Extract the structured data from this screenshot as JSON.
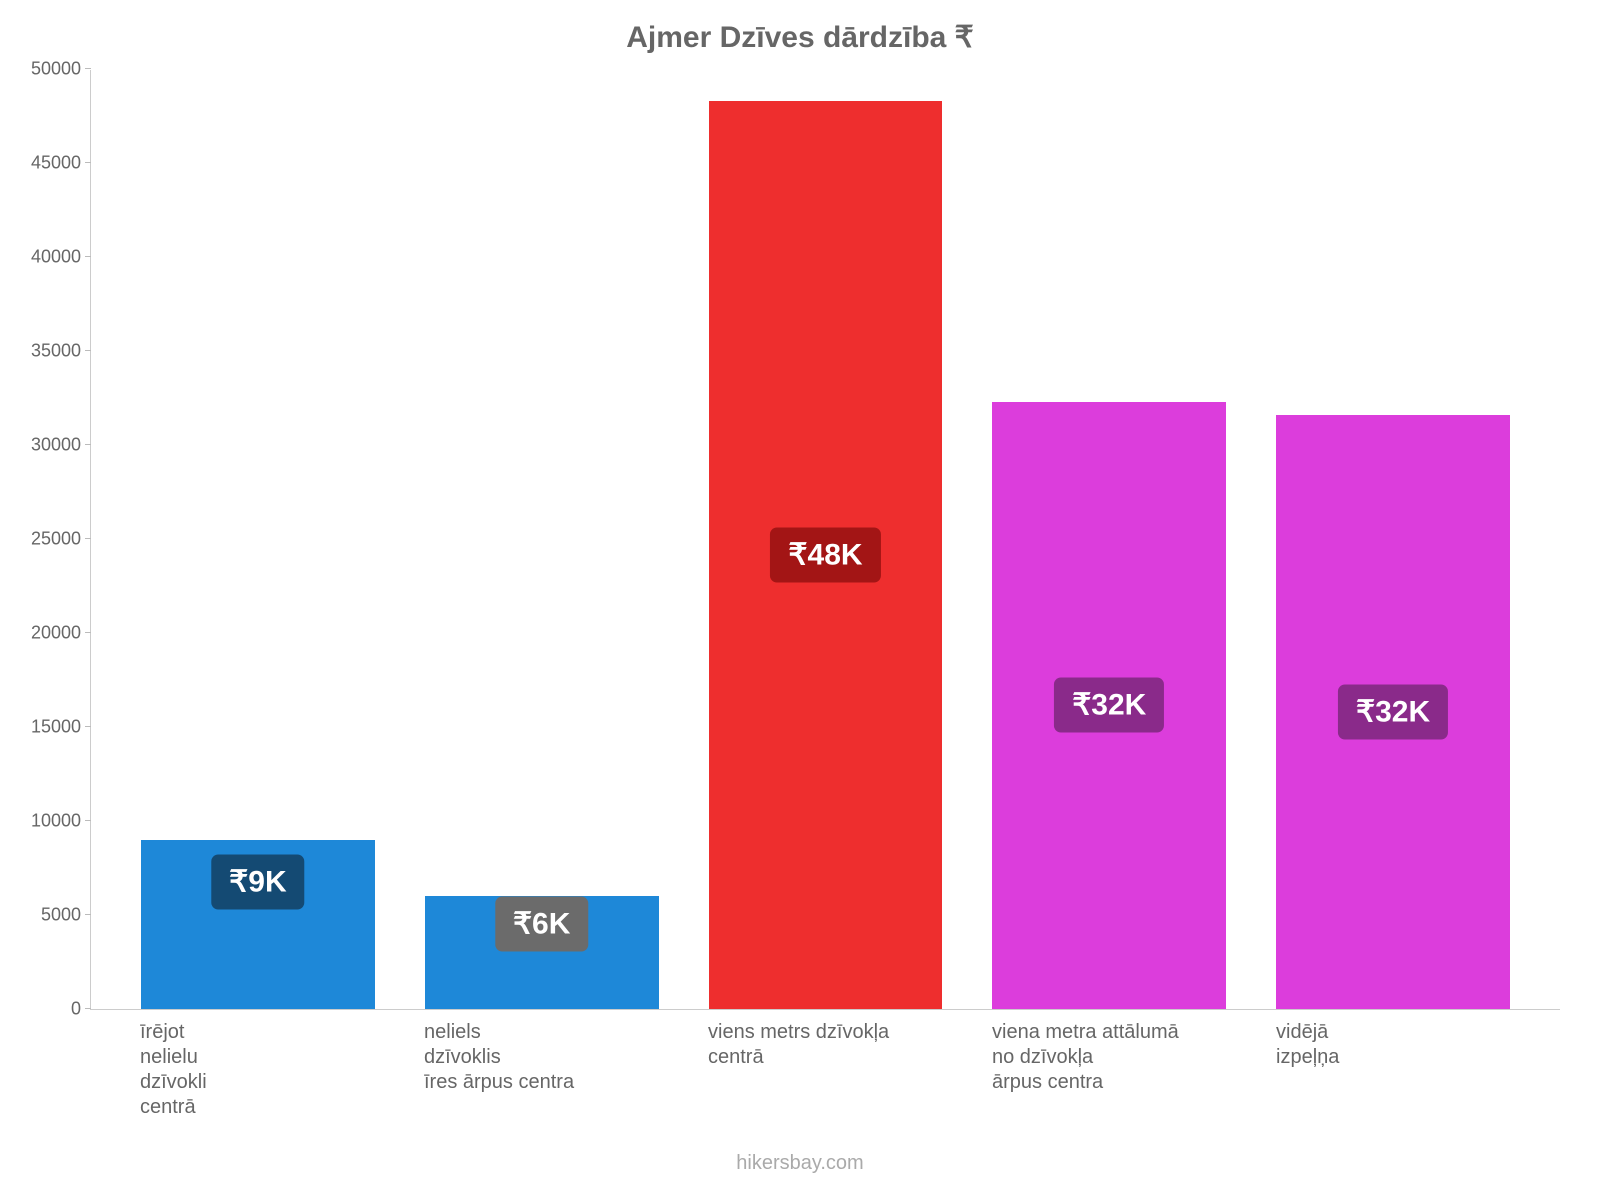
{
  "chart": {
    "type": "bar",
    "title": "Ajmer Dzīves dārdzība ₹",
    "title_fontsize": 30,
    "title_color": "#666666",
    "background_color": "#ffffff",
    "axis_color": "#cccccc",
    "tick_label_color": "#666666",
    "tick_label_fontsize": 18,
    "xlabel_fontsize": 20,
    "xlabel_color": "#666666",
    "ylim": [
      0,
      50000
    ],
    "ytick_step": 5000,
    "yticks": [
      {
        "value": 0,
        "label": "0"
      },
      {
        "value": 5000,
        "label": "5000"
      },
      {
        "value": 10000,
        "label": "10000"
      },
      {
        "value": 15000,
        "label": "15000"
      },
      {
        "value": 20000,
        "label": "20000"
      },
      {
        "value": 25000,
        "label": "25000"
      },
      {
        "value": 30000,
        "label": "30000"
      },
      {
        "value": 35000,
        "label": "35000"
      },
      {
        "value": 40000,
        "label": "40000"
      },
      {
        "value": 45000,
        "label": "45000"
      },
      {
        "value": 50000,
        "label": "50000"
      }
    ],
    "bars": [
      {
        "category_lines": [
          "īrējot",
          "nelielu",
          "dzīvokli",
          "centrā"
        ],
        "value": 9000,
        "bar_color": "#1e88d8",
        "value_label": "₹9K",
        "value_label_bg": "#144a73",
        "value_label_color": "#ffffff"
      },
      {
        "category_lines": [
          "neliels",
          "dzīvoklis",
          "īres ārpus centra"
        ],
        "value": 6000,
        "bar_color": "#1e88d8",
        "value_label": "₹6K",
        "value_label_bg": "#6b6b6b",
        "value_label_color": "#ffffff"
      },
      {
        "category_lines": [
          "viens metrs dzīvokļa",
          "centrā"
        ],
        "value": 48300,
        "bar_color": "#ee2e2e",
        "value_label": "₹48K",
        "value_label_bg": "#a31515",
        "value_label_color": "#ffffff"
      },
      {
        "category_lines": [
          "viena metra attālumā",
          "no dzīvokļa",
          "ārpus centra"
        ],
        "value": 32300,
        "bar_color": "#dc3ddc",
        "value_label": "₹32K",
        "value_label_bg": "#8a2a8a",
        "value_label_color": "#ffffff"
      },
      {
        "category_lines": [
          "vidējā",
          "izpeļņa"
        ],
        "value": 31600,
        "bar_color": "#dc3ddc",
        "value_label": "₹32K",
        "value_label_bg": "#8a2a8a",
        "value_label_color": "#ffffff"
      }
    ],
    "bar_label_fontsize": 30,
    "value_label_border_radius": 7,
    "footer": "hikersbay.com",
    "footer_color": "#aaaaaa",
    "footer_fontsize": 20
  }
}
